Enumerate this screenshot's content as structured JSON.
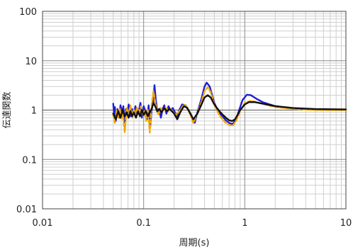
{
  "chart_data": {
    "type": "line",
    "title": "",
    "xlabel": "周期(s)",
    "ylabel": "伝達関数",
    "x_scale": "log",
    "y_scale": "log",
    "xlim": [
      0.01,
      10
    ],
    "ylim": [
      0.01,
      100
    ],
    "x_ticks": [
      "0.01",
      "0.1",
      "1",
      "10"
    ],
    "y_ticks": [
      "0.01",
      "0.1",
      "1",
      "10",
      "100"
    ],
    "grid": true,
    "legend": "none",
    "series": [
      {
        "color": "#1f1fd6",
        "style": "solid",
        "points": [
          [
            0.05,
            1.35
          ],
          [
            0.051,
            0.85
          ],
          [
            0.052,
            1.15
          ],
          [
            0.053,
            0.6
          ],
          [
            0.055,
            1.05
          ],
          [
            0.057,
            0.7
          ],
          [
            0.059,
            1.25
          ],
          [
            0.061,
            0.9
          ],
          [
            0.063,
            1.2
          ],
          [
            0.065,
            0.45
          ],
          [
            0.067,
            1.05
          ],
          [
            0.069,
            0.8
          ],
          [
            0.071,
            1.3
          ],
          [
            0.074,
            0.75
          ],
          [
            0.077,
            1.05
          ],
          [
            0.08,
            0.85
          ],
          [
            0.083,
            1.2
          ],
          [
            0.086,
            0.8
          ],
          [
            0.09,
            1.0
          ],
          [
            0.093,
            1.4
          ],
          [
            0.096,
            0.7
          ],
          [
            0.1,
            1.2
          ],
          [
            0.104,
            0.95
          ],
          [
            0.108,
            0.65
          ],
          [
            0.112,
            1.25
          ],
          [
            0.116,
            0.45
          ],
          [
            0.12,
            1.0
          ],
          [
            0.125,
            1.6
          ],
          [
            0.128,
            3.2
          ],
          [
            0.132,
            1.6
          ],
          [
            0.137,
            0.9
          ],
          [
            0.142,
            1.05
          ],
          [
            0.148,
            0.7
          ],
          [
            0.154,
            1.05
          ],
          [
            0.16,
            1.25
          ],
          [
            0.168,
            0.85
          ],
          [
            0.176,
            1.2
          ],
          [
            0.184,
            1.0
          ],
          [
            0.194,
            1.1
          ],
          [
            0.204,
            0.9
          ],
          [
            0.214,
            0.75
          ],
          [
            0.225,
            1.0
          ],
          [
            0.24,
            1.3
          ],
          [
            0.26,
            1.25
          ],
          [
            0.28,
            0.95
          ],
          [
            0.3,
            0.7
          ],
          [
            0.32,
            0.55
          ],
          [
            0.34,
            0.9
          ],
          [
            0.37,
            1.6
          ],
          [
            0.4,
            3.0
          ],
          [
            0.42,
            3.6
          ],
          [
            0.45,
            3.0
          ],
          [
            0.5,
            1.4
          ],
          [
            0.55,
            0.9
          ],
          [
            0.6,
            0.75
          ],
          [
            0.65,
            0.62
          ],
          [
            0.7,
            0.55
          ],
          [
            0.76,
            0.52
          ],
          [
            0.82,
            0.65
          ],
          [
            0.88,
            1.0
          ],
          [
            0.95,
            1.6
          ],
          [
            1.05,
            2.05
          ],
          [
            1.15,
            2.0
          ],
          [
            1.3,
            1.7
          ],
          [
            1.5,
            1.45
          ],
          [
            2.0,
            1.2
          ],
          [
            3.0,
            1.08
          ],
          [
            5.0,
            1.03
          ],
          [
            7.0,
            1.02
          ],
          [
            10.0,
            1.01
          ]
        ]
      },
      {
        "color": "#f2a900",
        "style": "dashed",
        "points": [
          [
            0.05,
            0.8
          ],
          [
            0.052,
            0.55
          ],
          [
            0.054,
            1.0
          ],
          [
            0.056,
            0.7
          ],
          [
            0.058,
            1.1
          ],
          [
            0.06,
            0.65
          ],
          [
            0.062,
            0.9
          ],
          [
            0.065,
            0.35
          ],
          [
            0.068,
            1.1
          ],
          [
            0.071,
            0.8
          ],
          [
            0.074,
            1.25
          ],
          [
            0.077,
            0.7
          ],
          [
            0.08,
            1.05
          ],
          [
            0.083,
            0.75
          ],
          [
            0.086,
            1.15
          ],
          [
            0.09,
            0.85
          ],
          [
            0.094,
            1.2
          ],
          [
            0.098,
            0.8
          ],
          [
            0.102,
            0.95
          ],
          [
            0.106,
            0.6
          ],
          [
            0.11,
            1.0
          ],
          [
            0.115,
            0.35
          ],
          [
            0.12,
            1.3
          ],
          [
            0.125,
            2.4
          ],
          [
            0.13,
            1.5
          ],
          [
            0.135,
            1.0
          ],
          [
            0.14,
            0.8
          ],
          [
            0.147,
            1.1
          ],
          [
            0.155,
            0.95
          ],
          [
            0.165,
            1.15
          ],
          [
            0.175,
            0.95
          ],
          [
            0.185,
            1.05
          ],
          [
            0.195,
            0.9
          ],
          [
            0.21,
            0.8
          ],
          [
            0.23,
            1.0
          ],
          [
            0.25,
            1.3
          ],
          [
            0.27,
            1.15
          ],
          [
            0.29,
            0.8
          ],
          [
            0.31,
            0.55
          ],
          [
            0.34,
            0.85
          ],
          [
            0.37,
            1.4
          ],
          [
            0.4,
            2.4
          ],
          [
            0.43,
            2.9
          ],
          [
            0.46,
            2.3
          ],
          [
            0.5,
            1.3
          ],
          [
            0.55,
            0.85
          ],
          [
            0.6,
            0.65
          ],
          [
            0.65,
            0.55
          ],
          [
            0.7,
            0.5
          ],
          [
            0.76,
            0.48
          ],
          [
            0.82,
            0.6
          ],
          [
            0.9,
            0.95
          ],
          [
            1.0,
            1.4
          ],
          [
            1.15,
            1.55
          ],
          [
            1.3,
            1.45
          ],
          [
            1.6,
            1.3
          ],
          [
            2.0,
            1.15
          ],
          [
            3.0,
            1.05
          ],
          [
            5.0,
            1.0
          ],
          [
            10.0,
            1.0
          ]
        ]
      },
      {
        "color": "#111111",
        "style": "solid",
        "points": [
          [
            0.05,
            0.85
          ],
          [
            0.053,
            0.65
          ],
          [
            0.056,
            0.95
          ],
          [
            0.059,
            0.7
          ],
          [
            0.062,
            1.0
          ],
          [
            0.065,
            0.75
          ],
          [
            0.068,
            0.9
          ],
          [
            0.071,
            0.7
          ],
          [
            0.074,
            0.95
          ],
          [
            0.077,
            0.75
          ],
          [
            0.08,
            0.9
          ],
          [
            0.084,
            0.7
          ],
          [
            0.088,
            0.95
          ],
          [
            0.092,
            0.75
          ],
          [
            0.096,
            1.0
          ],
          [
            0.1,
            0.8
          ],
          [
            0.105,
            0.95
          ],
          [
            0.11,
            0.75
          ],
          [
            0.115,
            0.9
          ],
          [
            0.12,
            1.05
          ],
          [
            0.125,
            1.4
          ],
          [
            0.13,
            1.2
          ],
          [
            0.136,
            0.95
          ],
          [
            0.143,
            1.05
          ],
          [
            0.15,
            0.9
          ],
          [
            0.16,
            1.1
          ],
          [
            0.17,
            0.95
          ],
          [
            0.18,
            1.05
          ],
          [
            0.19,
            0.95
          ],
          [
            0.2,
            0.85
          ],
          [
            0.215,
            0.65
          ],
          [
            0.23,
            0.9
          ],
          [
            0.25,
            1.2
          ],
          [
            0.27,
            1.1
          ],
          [
            0.29,
            0.85
          ],
          [
            0.31,
            0.65
          ],
          [
            0.34,
            0.85
          ],
          [
            0.37,
            1.25
          ],
          [
            0.4,
            1.8
          ],
          [
            0.43,
            2.0
          ],
          [
            0.46,
            1.8
          ],
          [
            0.5,
            1.3
          ],
          [
            0.55,
            1.0
          ],
          [
            0.6,
            0.82
          ],
          [
            0.65,
            0.7
          ],
          [
            0.7,
            0.62
          ],
          [
            0.75,
            0.6
          ],
          [
            0.8,
            0.65
          ],
          [
            0.85,
            0.8
          ],
          [
            0.9,
            1.0
          ],
          [
            1.0,
            1.3
          ],
          [
            1.1,
            1.45
          ],
          [
            1.25,
            1.45
          ],
          [
            1.5,
            1.35
          ],
          [
            2.0,
            1.2
          ],
          [
            3.0,
            1.1
          ],
          [
            5.0,
            1.05
          ],
          [
            10.0,
            1.03
          ]
        ]
      }
    ]
  }
}
